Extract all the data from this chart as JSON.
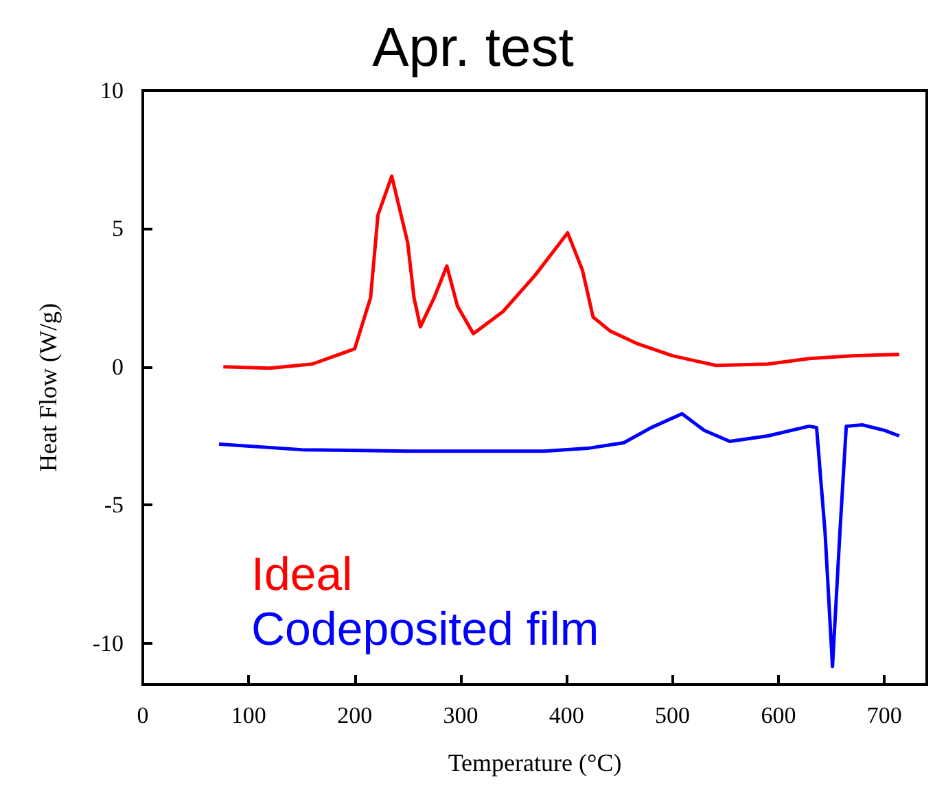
{
  "chart_data": {
    "type": "line",
    "title": "Apr. test",
    "xlabel": "Temperature (°C)",
    "ylabel": "Heat Flow (W/g)",
    "xlim": [
      0,
      740
    ],
    "xticks": [
      0,
      100,
      200,
      300,
      400,
      500,
      600,
      700
    ],
    "ylim": [
      -11.5,
      10
    ],
    "yticks": [
      -10,
      -5,
      0,
      5,
      10
    ],
    "grid": false,
    "legend": "bottom left",
    "marker": "none",
    "line_style": "solid",
    "series": [
      {
        "name": "Ideal",
        "color": "#ff0000",
        "x": [
          76,
          120,
          160,
          200,
          215,
          222,
          235,
          250,
          256,
          262,
          275,
          287,
          297,
          312,
          340,
          370,
          401,
          415,
          425,
          441,
          466,
          500,
          541,
          590,
          629,
          670,
          714
        ],
        "values": [
          0,
          -0.05,
          0.1,
          0.65,
          2.5,
          5.5,
          6.9,
          4.5,
          2.5,
          1.45,
          2.5,
          3.65,
          2.2,
          1.2,
          2,
          3.3,
          4.85,
          3.5,
          1.8,
          1.3,
          0.85,
          0.4,
          0.05,
          0.1,
          0.3,
          0.4,
          0.45
        ]
      },
      {
        "name": "Codeposited film",
        "color": "#0000ff",
        "x": [
          72,
          150,
          250,
          379,
          420,
          454,
          480,
          509,
          530,
          554,
          590,
          629,
          636,
          644,
          651,
          658,
          664,
          679,
          700,
          714
        ],
        "values": [
          -2.8,
          -3,
          -3.05,
          -3.05,
          -2.95,
          -2.75,
          -2.2,
          -1.7,
          -2.3,
          -2.7,
          -2.5,
          -2.15,
          -2.2,
          -6,
          -10.85,
          -6,
          -2.15,
          -2.1,
          -2.3,
          -2.5
        ]
      }
    ]
  }
}
